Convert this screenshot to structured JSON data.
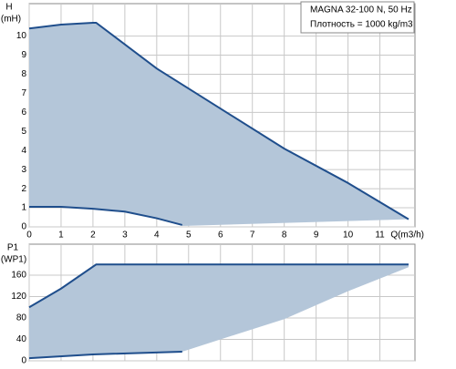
{
  "chart_data": [
    {
      "type": "area",
      "ylabel": "H",
      "yunit": "(mH)",
      "xlabel": "Q(m3/h)",
      "legend_lines": [
        "MAGNA 32-100 N, 50 Hz",
        "Плотность = 1000 kg/m3"
      ],
      "xlim": [
        0,
        12.1
      ],
      "ylim": [
        0,
        11.7
      ],
      "xticks": [
        0,
        1,
        2,
        3,
        4,
        5,
        6,
        7,
        8,
        9,
        10,
        11
      ],
      "yticks": [
        0,
        1,
        2,
        3,
        4,
        5,
        6,
        7,
        8,
        9,
        10
      ],
      "grid": true,
      "line_color": "#1f4e8c",
      "fill_color": "#b4c6d9",
      "upper": {
        "x": [
          0,
          1,
          2,
          2.1,
          4,
          6,
          8,
          10,
          11.9
        ],
        "values": [
          10.4,
          10.6,
          10.7,
          10.7,
          8.3,
          6.2,
          4.1,
          2.3,
          0.4
        ]
      },
      "lower": {
        "x": [
          0,
          1,
          2,
          3,
          4,
          4.8
        ],
        "values": [
          1.05,
          1.05,
          0.95,
          0.8,
          0.45,
          0.1
        ]
      },
      "edge": {
        "x": [
          4.8,
          11.9
        ],
        "values": [
          0.05,
          0.4
        ]
      }
    },
    {
      "type": "area",
      "ylabel": "P1",
      "yunit": "(WP1)",
      "xlim": [
        0,
        12.1
      ],
      "ylim": [
        0,
        218
      ],
      "xticks": [
        0,
        1,
        2,
        3,
        4,
        5,
        6,
        7,
        8,
        9,
        10,
        11
      ],
      "yticks": [
        0,
        40,
        80,
        120,
        160
      ],
      "grid": true,
      "line_color": "#1f4e8c",
      "fill_color": "#b4c6d9",
      "upper": {
        "x": [
          0,
          1,
          2.1,
          11.9
        ],
        "values": [
          100,
          135,
          180,
          180
        ]
      },
      "lower": {
        "x": [
          0,
          2,
          4.8
        ],
        "values": [
          5,
          12,
          17
        ]
      },
      "edge": {
        "x": [
          4.8,
          6,
          8,
          10,
          11.9
        ],
        "values": [
          17,
          40,
          78,
          130,
          175
        ]
      }
    }
  ]
}
